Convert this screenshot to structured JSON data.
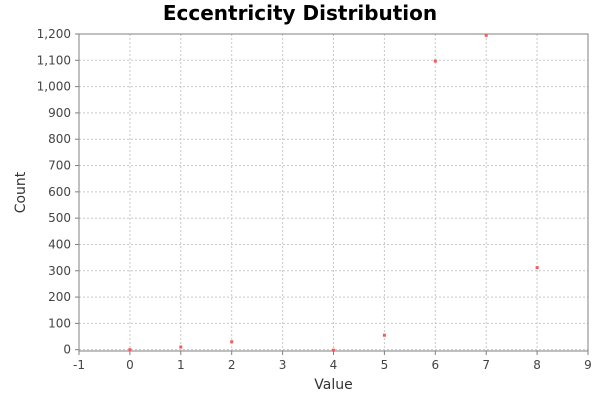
{
  "chart_data": {
    "type": "scatter",
    "title": "Eccentricity Distribution",
    "xlabel": "Value",
    "ylabel": "Count",
    "xlim": [
      -1,
      9
    ],
    "ylim": [
      -5,
      1200
    ],
    "x_ticks": [
      -1,
      0,
      1,
      2,
      3,
      4,
      5,
      6,
      7,
      8,
      9
    ],
    "y_ticks": [
      0,
      100,
      200,
      300,
      400,
      500,
      600,
      700,
      800,
      900,
      1000,
      1100,
      1200
    ],
    "x_tick_labels": [
      "-1",
      "0",
      "1",
      "2",
      "3",
      "4",
      "5",
      "6",
      "7",
      "8",
      "9"
    ],
    "y_tick_labels": [
      "0",
      "100",
      "200",
      "300",
      "400",
      "500",
      "600",
      "700",
      "800",
      "900",
      "1,000",
      "1,100",
      "1,200"
    ],
    "grid": true,
    "marker_color": "#f25c5c",
    "series": [
      {
        "points": [
          {
            "x": 0,
            "y": 0
          },
          {
            "x": 1,
            "y": 10
          },
          {
            "x": 2,
            "y": 30
          },
          {
            "x": 4,
            "y": -2
          },
          {
            "x": 5,
            "y": 55
          },
          {
            "x": 6,
            "y": 1097
          },
          {
            "x": 7,
            "y": 1195
          },
          {
            "x": 8,
            "y": 312
          }
        ]
      }
    ]
  }
}
